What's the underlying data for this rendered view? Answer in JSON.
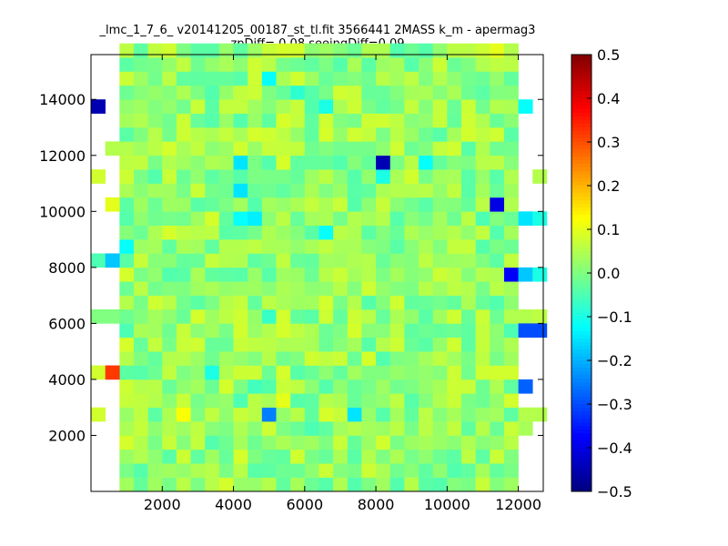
{
  "chart_data": {
    "type": "heatmap",
    "title": "_lmc_1_7_6_ v20141205_00187_st_tl.fit 3566441 2MASS k_m - apermag3",
    "subtitle": "zpDiff= 0.08 seeingDiff=0.09",
    "xlabel": "",
    "ylabel": "",
    "xlim": [
      0,
      12700
    ],
    "ylim": [
      0,
      15600
    ],
    "x_ticks": [
      2000,
      4000,
      6000,
      8000,
      10000,
      12000
    ],
    "y_ticks": [
      2000,
      4000,
      6000,
      8000,
      10000,
      12000,
      14000
    ],
    "colorbar": {
      "colormap": "jet",
      "range": [
        -0.5,
        0.5
      ],
      "ticks": [
        0.5,
        0.4,
        0.3,
        0.2,
        0.1,
        0.0,
        -0.1,
        -0.2,
        -0.3,
        -0.4,
        -0.5
      ],
      "tick_labels": [
        "0.5",
        "0.4",
        "0.3",
        "0.2",
        "0.1",
        "0.0",
        "−0.1",
        "−0.2",
        "−0.3",
        "−0.4",
        "−0.5"
      ]
    },
    "grid": false,
    "legend": "none",
    "bin_size": [
      400,
      500
    ],
    "bins": [
      [
        0,
        13500,
        -0.45
      ],
      [
        0,
        11000,
        0.08
      ],
      [
        0,
        8000,
        -0.05
      ],
      [
        0,
        6000,
        0.0
      ],
      [
        0,
        4000,
        0.08
      ],
      [
        0,
        2500,
        0.08
      ],
      [
        400,
        12000,
        0.05
      ],
      [
        400,
        10000,
        0.1
      ],
      [
        400,
        8000,
        -0.18
      ],
      [
        400,
        6000,
        0.0
      ],
      [
        400,
        4000,
        0.32
      ],
      [
        800,
        8500,
        -0.12
      ],
      [
        800,
        6500,
        0.05
      ],
      [
        800,
        5500,
        -0.05
      ],
      [
        800,
        4500,
        0.05
      ],
      [
        1600,
        3000,
        0.05
      ],
      [
        2000,
        2000,
        0.05
      ],
      [
        2000,
        4500,
        0.05
      ],
      [
        2400,
        2500,
        0.12
      ],
      [
        2800,
        2000,
        0.06
      ],
      [
        3200,
        9000,
        0.06
      ],
      [
        3200,
        4000,
        -0.1
      ],
      [
        4000,
        12500,
        0.04
      ],
      [
        4000,
        11500,
        -0.15
      ],
      [
        4000,
        10500,
        -0.15
      ],
      [
        4000,
        9500,
        -0.12
      ],
      [
        4000,
        8500,
        0.05
      ],
      [
        4000,
        3000,
        -0.05
      ],
      [
        4400,
        9500,
        -0.14
      ],
      [
        4400,
        8500,
        0.06
      ],
      [
        4400,
        3500,
        -0.06
      ],
      [
        4800,
        14500,
        -0.12
      ],
      [
        4800,
        6000,
        -0.07
      ],
      [
        4800,
        2500,
        -0.25
      ],
      [
        5200,
        12500,
        0.06
      ],
      [
        5200,
        3500,
        0.07
      ],
      [
        5200,
        3000,
        0.1
      ],
      [
        5600,
        3500,
        0.06
      ],
      [
        5600,
        14000,
        -0.08
      ],
      [
        6000,
        2000,
        -0.05
      ],
      [
        6400,
        9000,
        -0.12
      ],
      [
        6400,
        13500,
        -0.1
      ],
      [
        7200,
        2500,
        -0.15
      ],
      [
        8000,
        11500,
        -0.45
      ],
      [
        8000,
        11000,
        -0.1
      ],
      [
        8000,
        1500,
        0.08
      ],
      [
        9200,
        11500,
        -0.12
      ],
      [
        10400,
        12500,
        0.08
      ],
      [
        10800,
        9500,
        -0.05
      ],
      [
        11200,
        10000,
        -0.4
      ],
      [
        11200,
        4000,
        0.08
      ],
      [
        11200,
        15500,
        0.1
      ],
      [
        11600,
        7500,
        -0.38
      ],
      [
        11600,
        5500,
        -0.05
      ],
      [
        12000,
        13500,
        -0.12
      ],
      [
        12000,
        9500,
        -0.15
      ],
      [
        12000,
        7500,
        -0.18
      ],
      [
        12000,
        6000,
        0.05
      ],
      [
        12000,
        5500,
        -0.3
      ],
      [
        12000,
        3500,
        -0.28
      ],
      [
        12000,
        2500,
        0.05
      ],
      [
        12000,
        2000,
        0.04
      ],
      [
        12400,
        11000,
        0.05
      ],
      [
        12400,
        9500,
        -0.1
      ],
      [
        12400,
        7500,
        -0.1
      ],
      [
        12400,
        6000,
        0.06
      ],
      [
        12400,
        5500,
        -0.3
      ],
      [
        12400,
        2500,
        0.05
      ]
    ]
  }
}
